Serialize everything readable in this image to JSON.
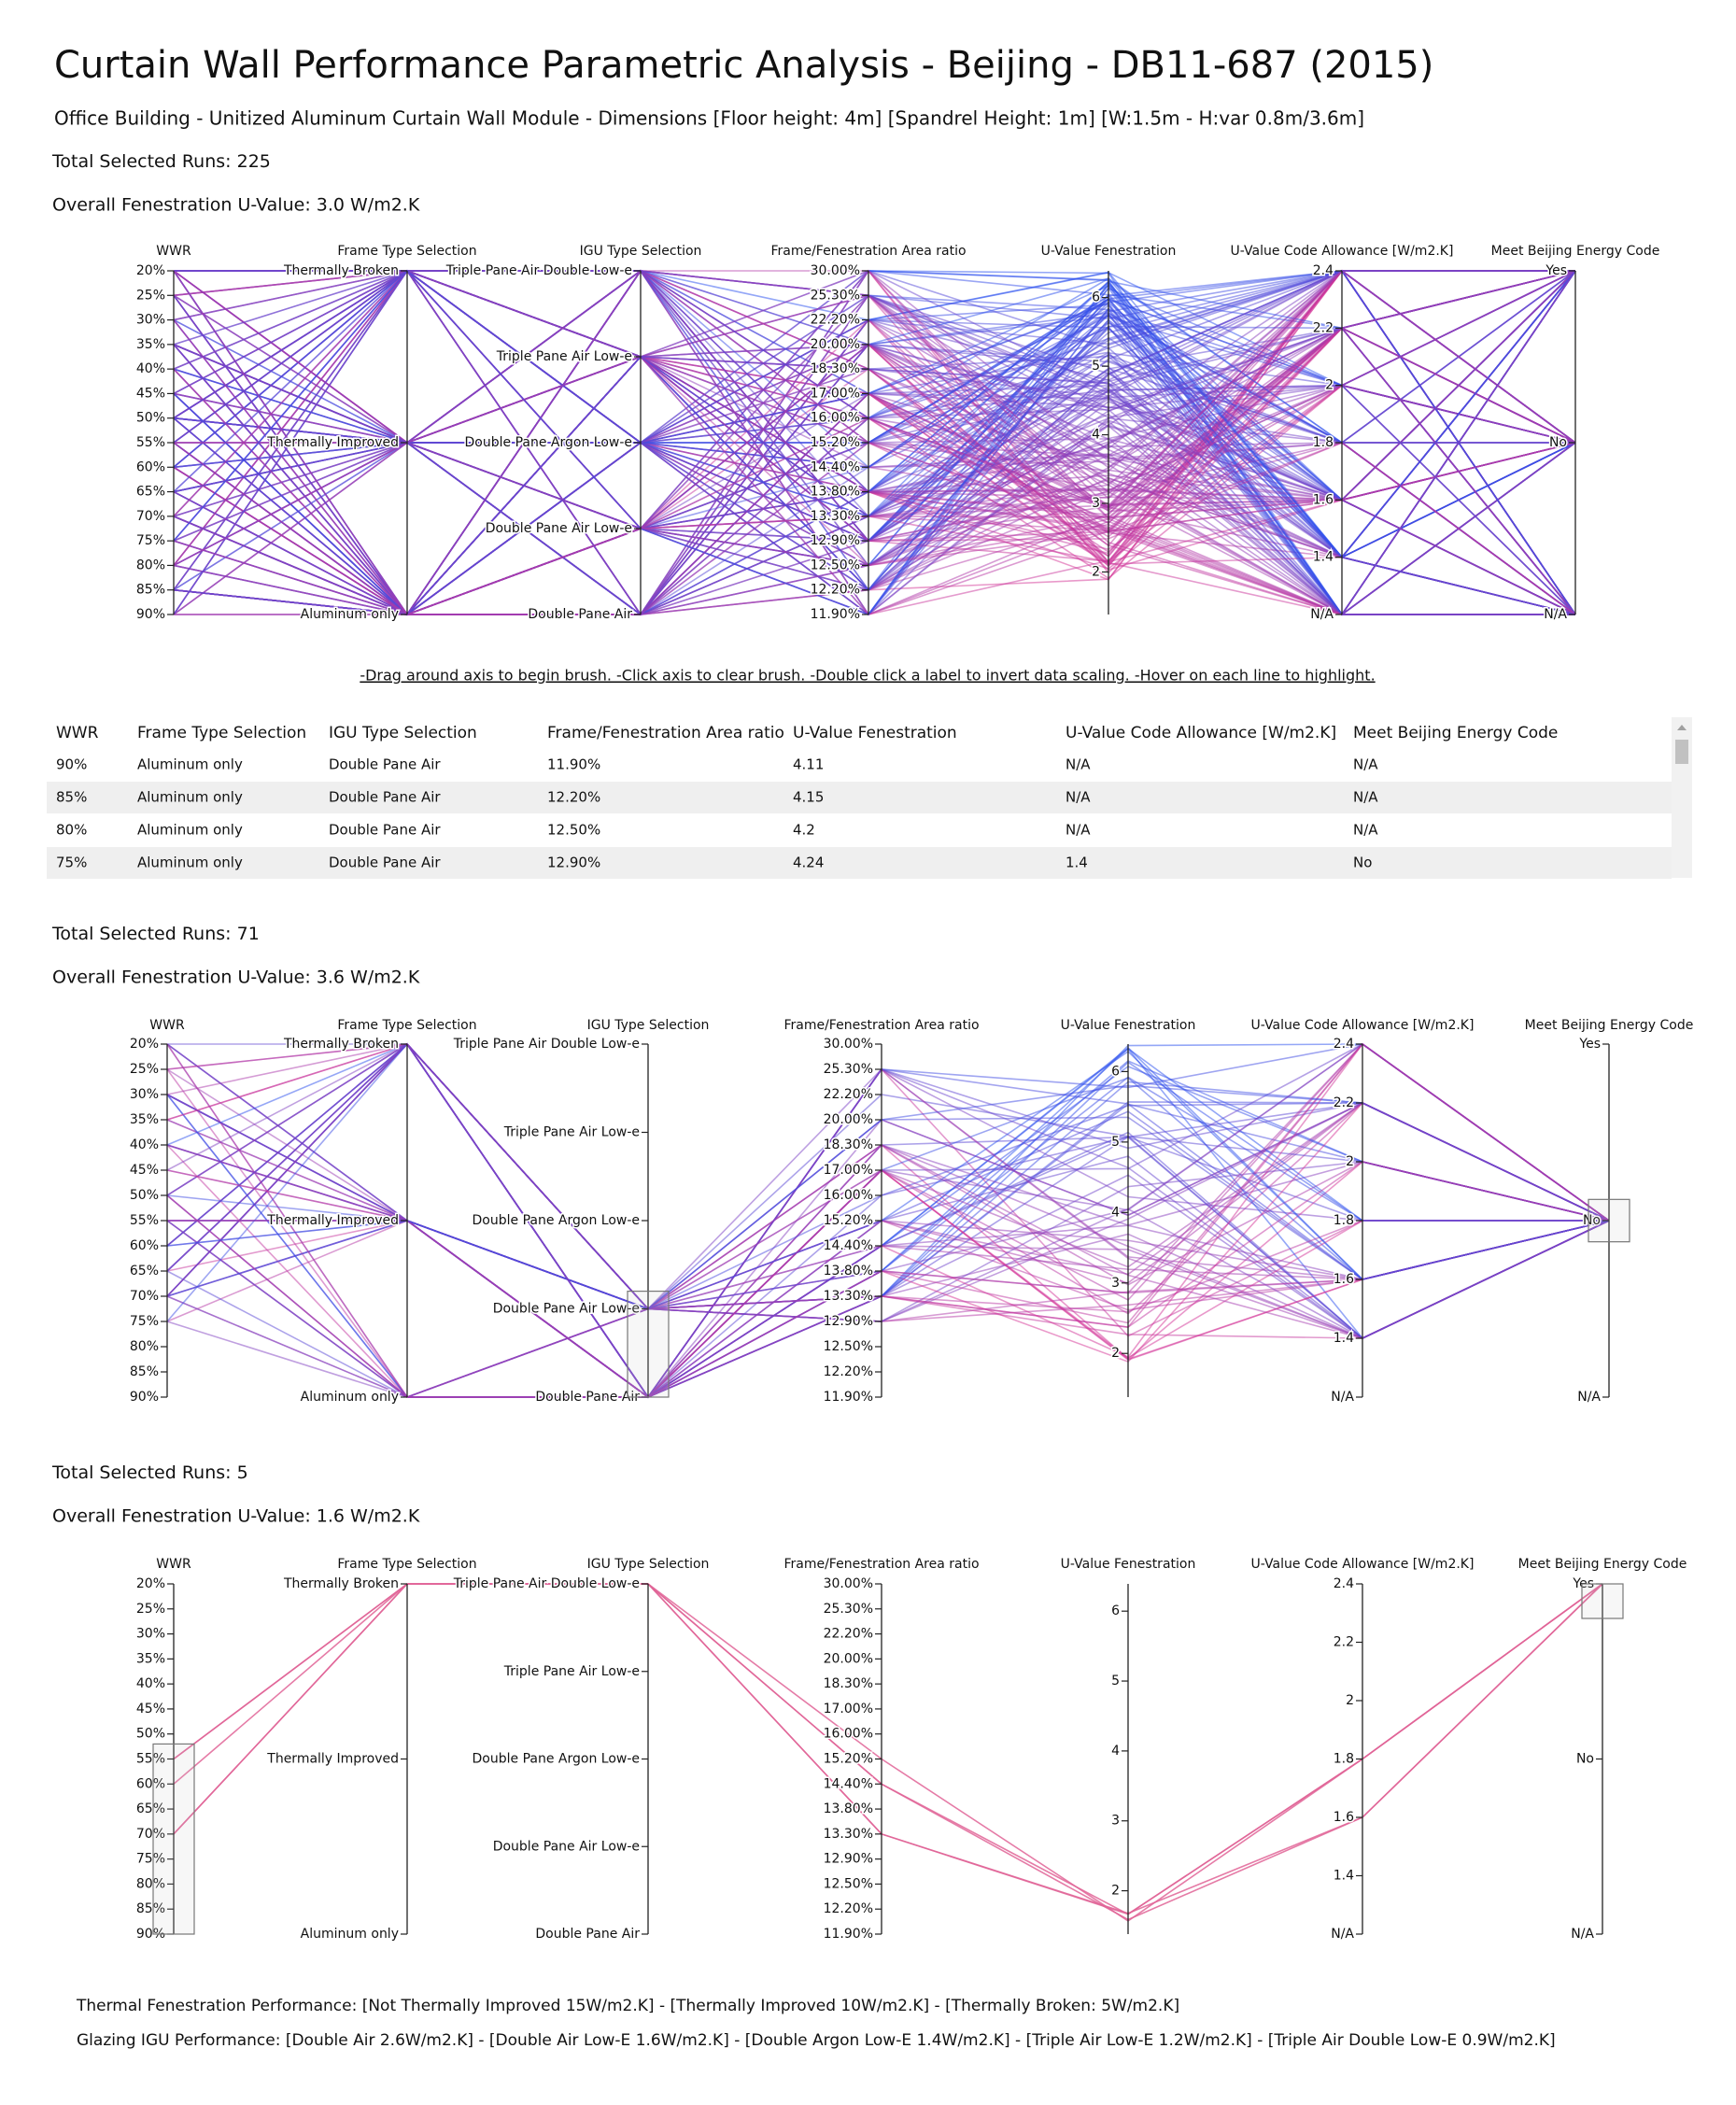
{
  "header": {
    "title": "Curtain Wall Performance Parametric Analysis - Beijing - DB11-687 (2015)",
    "subtitle": "Office Building - Unitized Aluminum Curtain Wall Module - Dimensions [Floor height: 4m] [Spandrel Height: 1m] [W:1.5m - H:var 0.8m/3.6m]"
  },
  "axes": [
    {
      "name": "WWR",
      "ticks": [
        "20%",
        "25%",
        "30%",
        "35%",
        "40%",
        "45%",
        "50%",
        "55%",
        "60%",
        "65%",
        "70%",
        "75%",
        "80%",
        "85%",
        "90%"
      ]
    },
    {
      "name": "Frame Type Selection",
      "ticks": [
        "Thermally Broken",
        "Thermally Improved",
        "Aluminum only"
      ]
    },
    {
      "name": "IGU Type Selection",
      "ticks": [
        "Triple Pane Air Double Low-e",
        "Triple Pane Air Low-e",
        "Double Pane Argon Low-e",
        "Double Pane Air Low-e",
        "Double Pane Air"
      ]
    },
    {
      "name": "Frame/Fenestration Area ratio",
      "ticks": [
        "30.00%",
        "25.30%",
        "22.20%",
        "20.00%",
        "18.30%",
        "17.00%",
        "16.00%",
        "15.20%",
        "14.40%",
        "13.80%",
        "13.30%",
        "12.90%",
        "12.50%",
        "12.20%",
        "11.90%"
      ]
    },
    {
      "name": "U-Value Fenestration",
      "ticks": [
        6,
        5,
        4,
        3,
        2
      ],
      "lim": [
        1.38,
        6.39
      ]
    },
    {
      "name": "U-Value Code Allowance [W/m2.K]",
      "ticks": [
        "2.4",
        "2.2",
        "2",
        "1.8",
        "1.6",
        "1.4",
        "N/A"
      ]
    },
    {
      "name": "Meet Beijing Energy Code",
      "ticks": [
        "Yes",
        "No",
        "N/A"
      ]
    }
  ],
  "panels": [
    {
      "runs_label": "Total Selected Runs:",
      "runs": 225,
      "u_value": "Overall Fenestration U-Value: 3.0 W/m2.K"
    },
    {
      "runs_label": "Total Selected Runs:",
      "runs": 71,
      "u_value": "Overall Fenestration U-Value: 3.6 W/m2.K"
    },
    {
      "runs_label": "Total Selected Runs:",
      "runs": 5,
      "u_value": "Overall Fenestration U-Value: 1.6 W/m2.K"
    }
  ],
  "instructions": "-Drag around axis to begin brush. -Click axis to clear brush. -Double click a label to invert data scaling. -Hover on each line to highlight.",
  "table": {
    "headers": [
      "WWR",
      "Frame Type Selection",
      "IGU Type Selection",
      "Frame/Fenestration Area ratio",
      "U-Value Fenestration",
      "U-Value Code Allowance [W/m2.K]",
      "Meet Beijing Energy Code"
    ],
    "rows": [
      [
        "90%",
        "Aluminum only",
        "Double Pane Air",
        "11.90%",
        "4.11",
        "N/A",
        "N/A"
      ],
      [
        "85%",
        "Aluminum only",
        "Double Pane Air",
        "12.20%",
        "4.15",
        "N/A",
        "N/A"
      ],
      [
        "80%",
        "Aluminum only",
        "Double Pane Air",
        "12.50%",
        "4.2",
        "N/A",
        "N/A"
      ],
      [
        "75%",
        "Aluminum only",
        "Double Pane Air",
        "12.90%",
        "4.24",
        "1.4",
        "No"
      ]
    ]
  },
  "footer": [
    "Thermal Fenestration Performance: [Not Thermally Improved 15W/m2.K] - [Thermally Improved 10W/m2.K] - [Thermally Broken: 5W/m2.K]",
    "Glazing IGU Performance: [Double Air 2.6W/m2.K] - [Double Air Low-E 1.6W/m2.K] - [Double Argon Low-E 1.4W/m2.K] - [Triple Air Low-E 1.2W/m2.K] - [Triple Air Double Low-E 0.9W/m2.K]"
  ]
}
